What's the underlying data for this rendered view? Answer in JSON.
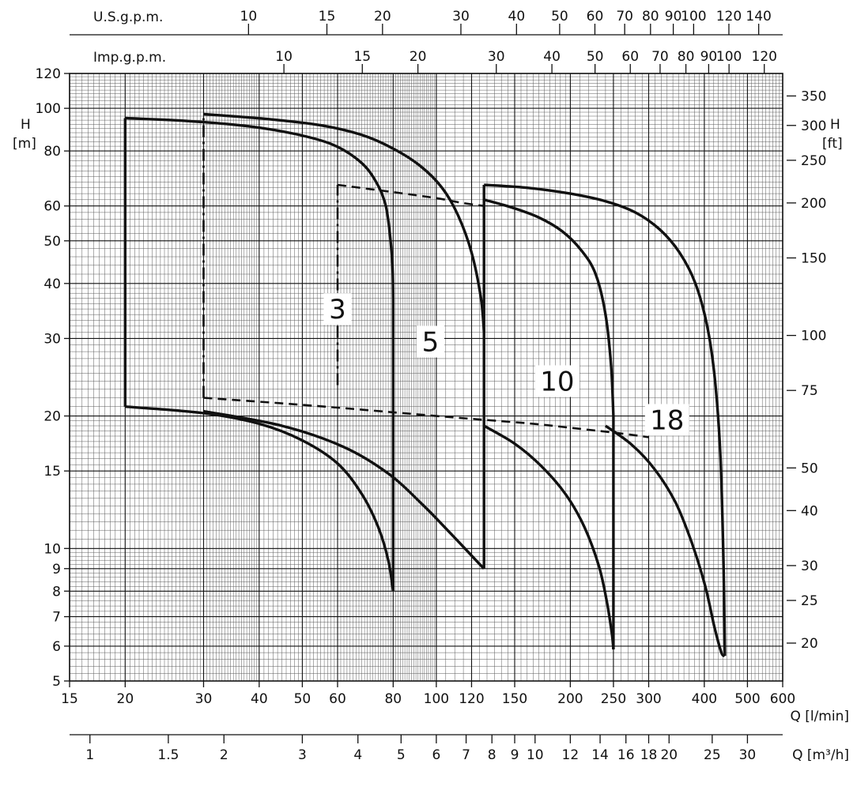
{
  "page": {
    "background": "#ffffff",
    "ink": "#111111"
  },
  "chart_data": {
    "type": "line",
    "description": "Pump performance envelope chart (head H vs flow Q), log-log scales, pump models 3, 5, 10, 18",
    "q_axis_lmin": {
      "label": "Q [l/min]",
      "min": 15,
      "max": 600,
      "ticks": [
        15,
        20,
        30,
        40,
        50,
        60,
        80,
        100,
        120,
        150,
        200,
        250,
        300,
        400,
        500,
        600
      ]
    },
    "q_axis_m3h": {
      "label": "Q [m³/h]",
      "lmin_per_unit": 16.6667,
      "ticks": [
        1,
        1.5,
        2,
        3,
        4,
        5,
        6,
        7,
        8,
        9,
        10,
        12,
        14,
        16,
        18,
        20,
        25,
        30
      ]
    },
    "q_axis_usgpm": {
      "label": "U.S.g.p.m.",
      "lmin_per_unit": 3.7854,
      "ticks": [
        10,
        15,
        20,
        30,
        40,
        50,
        60,
        70,
        80,
        90,
        100,
        120,
        140
      ]
    },
    "q_axis_impgpm": {
      "label": "Imp.g.p.m.",
      "lmin_per_unit": 4.5461,
      "ticks": [
        10,
        15,
        20,
        30,
        40,
        50,
        60,
        70,
        80,
        90,
        100,
        120
      ]
    },
    "h_axis_m": {
      "label": "H",
      "unit": "[m]",
      "min": 5,
      "max": 120,
      "ticks": [
        120,
        100,
        80,
        60,
        50,
        40,
        30,
        20,
        15,
        10,
        9,
        8,
        7,
        6,
        5
      ]
    },
    "h_axis_ft": {
      "label": "H",
      "unit": "[ft]",
      "m_per_unit": 0.3048,
      "ticks": [
        350,
        300,
        250,
        200,
        150,
        100,
        75,
        50,
        40,
        30,
        25,
        20
      ]
    },
    "curve_labels": [
      {
        "text": "3",
        "q": 60,
        "h": 35
      },
      {
        "text": "5",
        "q": 97,
        "h": 29.5
      },
      {
        "text": "10",
        "q": 187,
        "h": 24
      },
      {
        "text": "18",
        "q": 330,
        "h": 19.6
      }
    ],
    "series": [
      {
        "name": "model-3-min-flow-line",
        "style": "solid",
        "points": [
          [
            20,
            21
          ],
          [
            20,
            95
          ]
        ]
      },
      {
        "name": "model-3-max-head-curve",
        "style": "solid",
        "points": [
          [
            20,
            95
          ],
          [
            28,
            93.5
          ],
          [
            38,
            91
          ],
          [
            48,
            87.5
          ],
          [
            58,
            83
          ],
          [
            66,
            77
          ],
          [
            72,
            70
          ],
          [
            77,
            60
          ],
          [
            79.5,
            46
          ],
          [
            80,
            37
          ]
        ]
      },
      {
        "name": "model-3-max-flow-drop",
        "style": "solid",
        "points": [
          [
            80,
            37
          ],
          [
            80,
            8
          ]
        ]
      },
      {
        "name": "model-3-min-head-curve",
        "style": "solid",
        "points": [
          [
            20,
            21
          ],
          [
            30,
            20.3
          ],
          [
            40,
            19.2
          ],
          [
            50,
            17.6
          ],
          [
            60,
            15.6
          ],
          [
            68,
            13.3
          ],
          [
            74,
            11.2
          ],
          [
            78,
            9.4
          ],
          [
            80,
            8
          ]
        ]
      },
      {
        "name": "model-5-min-flow-line",
        "style": "dashdot",
        "points": [
          [
            30,
            22
          ],
          [
            30,
            97
          ]
        ]
      },
      {
        "name": "model-5-max-head-curve",
        "style": "solid",
        "points": [
          [
            30,
            97
          ],
          [
            42,
            94.5
          ],
          [
            55,
            91.5
          ],
          [
            68,
            87
          ],
          [
            80,
            81
          ],
          [
            92,
            74
          ],
          [
            103,
            66
          ],
          [
            112,
            57
          ],
          [
            120,
            47
          ],
          [
            126,
            37
          ],
          [
            128,
            31
          ]
        ]
      },
      {
        "name": "model-5-drop-and-model-10-min-flow-line",
        "style": "solid",
        "points": [
          [
            128,
            67
          ],
          [
            128,
            9
          ]
        ]
      },
      {
        "name": "model-5-min-head-curve",
        "style": "solid",
        "points": [
          [
            30,
            20.5
          ],
          [
            45,
            19
          ],
          [
            62,
            17
          ],
          [
            78,
            14.8
          ],
          [
            93,
            12.6
          ],
          [
            106,
            11
          ],
          [
            117,
            9.9
          ],
          [
            124,
            9.3
          ],
          [
            128,
            9
          ]
        ]
      },
      {
        "name": "reduced-duty-min-flow-line",
        "style": "dashdot",
        "points": [
          [
            60,
            23.5
          ],
          [
            60,
            67
          ]
        ]
      },
      {
        "name": "reduced-duty-upper-limit",
        "style": "dashed",
        "points": [
          [
            60,
            67
          ],
          [
            80,
            64.5
          ],
          [
            100,
            62.5
          ],
          [
            114,
            61
          ],
          [
            128,
            60
          ]
        ]
      },
      {
        "name": "reduced-duty-lower-limit",
        "style": "dashed",
        "points": [
          [
            30,
            22
          ],
          [
            50,
            21.2
          ],
          [
            75,
            20.5
          ],
          [
            100,
            20
          ],
          [
            128,
            19.6
          ],
          [
            165,
            19.2
          ],
          [
            210,
            18.7
          ],
          [
            255,
            18.3
          ],
          [
            300,
            17.9
          ]
        ]
      },
      {
        "name": "model-10-max-head-curve",
        "style": "solid",
        "points": [
          [
            128,
            62
          ],
          [
            148,
            59.5
          ],
          [
            170,
            56.5
          ],
          [
            192,
            52.5
          ],
          [
            212,
            47.5
          ],
          [
            228,
            42
          ],
          [
            240,
            34
          ],
          [
            247,
            26
          ],
          [
            250,
            20
          ]
        ]
      },
      {
        "name": "model-10-max-flow-drop",
        "style": "solid",
        "points": [
          [
            250,
            20
          ],
          [
            250,
            5.9
          ]
        ]
      },
      {
        "name": "model-10-min-head-curve",
        "style": "solid",
        "points": [
          [
            128,
            19
          ],
          [
            150,
            17.3
          ],
          [
            172,
            15.4
          ],
          [
            195,
            13.3
          ],
          [
            215,
            11.2
          ],
          [
            232,
            9.1
          ],
          [
            242,
            7.5
          ],
          [
            248,
            6.4
          ],
          [
            250,
            5.9
          ]
        ]
      },
      {
        "name": "model-18-max-head-curve",
        "style": "solid",
        "points": [
          [
            128,
            67
          ],
          [
            160,
            66
          ],
          [
            200,
            64
          ],
          [
            240,
            61.5
          ],
          [
            280,
            58
          ],
          [
            318,
            53
          ],
          [
            352,
            47
          ],
          [
            382,
            40
          ],
          [
            406,
            32
          ],
          [
            423,
            24
          ],
          [
            435,
            16
          ],
          [
            442,
            9
          ],
          [
            445,
            5.7
          ]
        ]
      },
      {
        "name": "model-18-min-head-curve",
        "style": "solid",
        "points": [
          [
            240,
            19
          ],
          [
            275,
            17.2
          ],
          [
            310,
            15.1
          ],
          [
            345,
            12.7
          ],
          [
            375,
            10.3
          ],
          [
            402,
            8.2
          ],
          [
            422,
            6.6
          ],
          [
            437,
            5.8
          ],
          [
            445,
            5.7
          ]
        ]
      }
    ]
  }
}
